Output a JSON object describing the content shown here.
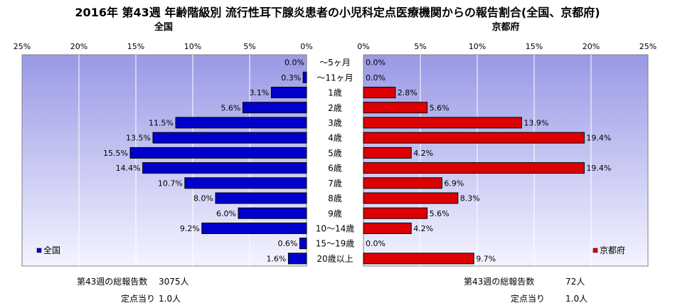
{
  "title": "2016年 第43週 年齢階級別 流行性耳下腺炎患者の小児科定点医療機関からの報告割合(全国、京都府)",
  "left_panel_title": "全国",
  "right_panel_title": "京都府",
  "footer": {
    "left_total_label": "第43週の総報告数",
    "left_total_value": "3075人",
    "left_per_label": "定点当り",
    "left_per_value": "1.0人",
    "right_total_label": "第43週の総報告数",
    "right_total_value": "72人",
    "right_per_label": "定点当り",
    "right_per_value": "1.0人"
  },
  "colors": {
    "national": "#0000cc",
    "kyoto": "#dd0000",
    "plot_bg_top": "#9999e6",
    "plot_bg_bottom": "#f4f4ff"
  },
  "chart_data": {
    "type": "bar",
    "orientation": "horizontal-butterfly",
    "categories": [
      "～5ヶ月",
      "～11ヶ月",
      "1歳",
      "2歳",
      "3歳",
      "4歳",
      "5歳",
      "6歳",
      "7歳",
      "8歳",
      "9歳",
      "10～14歳",
      "15～19歳",
      "20歳以上"
    ],
    "xlim": [
      0,
      25
    ],
    "ticks": [
      "0%",
      "5%",
      "10%",
      "15%",
      "20%",
      "25%"
    ],
    "series": [
      {
        "name": "全国",
        "side": "left",
        "values": [
          0.0,
          0.3,
          3.1,
          5.6,
          11.5,
          13.5,
          15.5,
          14.4,
          10.7,
          8.0,
          6.0,
          9.2,
          0.6,
          1.6
        ],
        "labels": [
          "0.0%",
          "0.3%",
          "3.1%",
          "5.6%",
          "11.5%",
          "13.5%",
          "15.5%",
          "14.4%",
          "10.7%",
          "8.0%",
          "6.0%",
          "9.2%",
          "0.6%",
          "1.6%"
        ]
      },
      {
        "name": "京都府",
        "side": "right",
        "values": [
          0.0,
          0.0,
          2.8,
          5.6,
          13.9,
          19.4,
          4.2,
          19.4,
          6.9,
          8.3,
          5.6,
          4.2,
          0.0,
          9.7
        ],
        "labels": [
          "0.0%",
          "0.0%",
          "2.8%",
          "5.6%",
          "13.9%",
          "19.4%",
          "4.2%",
          "19.4%",
          "6.9%",
          "8.3%",
          "5.6%",
          "4.2%",
          "0.0%",
          "9.7%"
        ]
      }
    ],
    "legend_position": "bottom-left / bottom-right",
    "grid": true
  }
}
